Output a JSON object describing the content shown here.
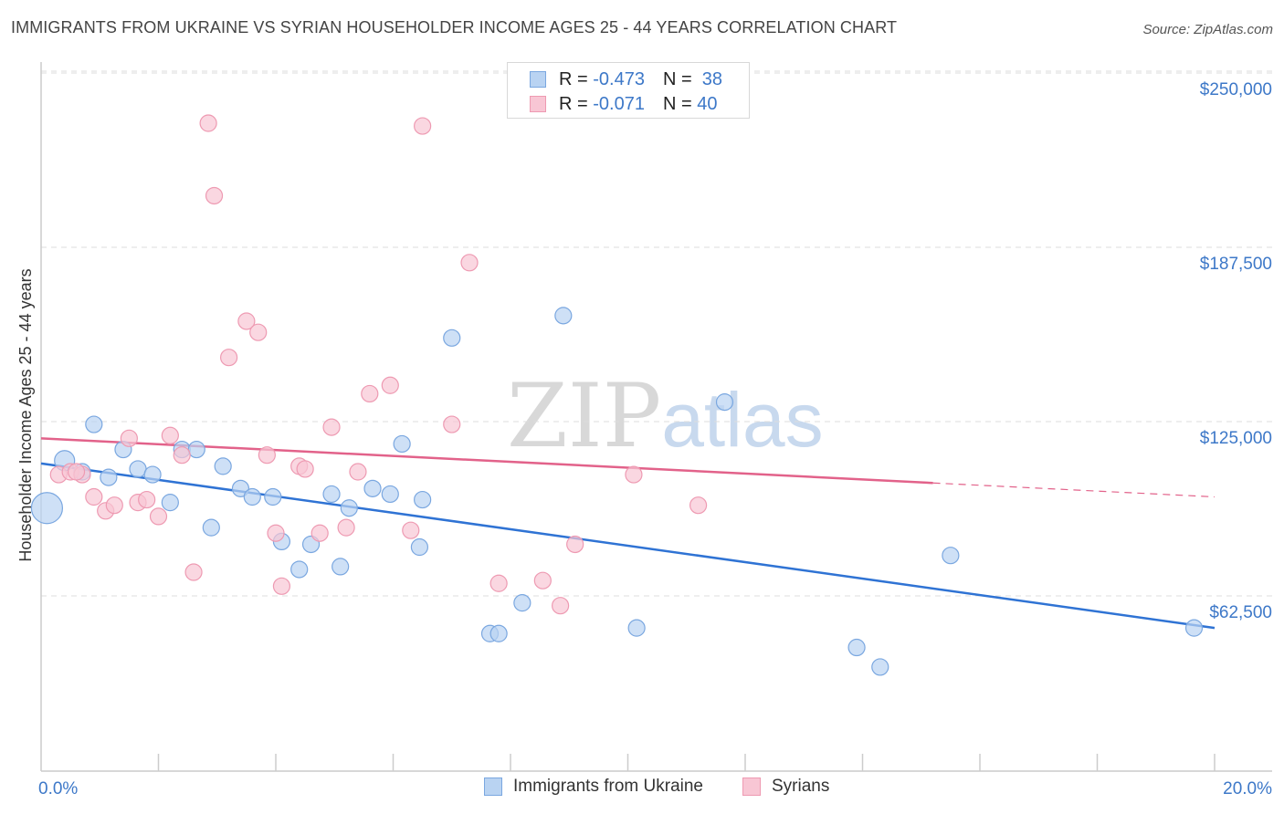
{
  "title": "IMMIGRANTS FROM UKRAINE VS SYRIAN HOUSEHOLDER INCOME AGES 25 - 44 YEARS CORRELATION CHART",
  "source": "Source: ZipAtlas.com",
  "watermark": {
    "zip": "ZIP",
    "atlas": "atlas"
  },
  "legend": {
    "rows": [
      {
        "r_label": "R =",
        "r_value": "-0.473",
        "n_label": "N =",
        "n_value": "38"
      },
      {
        "r_label": "R =",
        "r_value": "-0.071",
        "n_label": "N =",
        "n_value": "40"
      }
    ]
  },
  "colors": {
    "ukraine_fill": "#b9d3f2",
    "ukraine_stroke": "#7aa7e0",
    "ukraine_line": "#2f73d4",
    "syria_fill": "#f8c6d4",
    "syria_stroke": "#ee9ab2",
    "syria_line": "#e2628a",
    "grid": "#dddddd",
    "tick_text": "#3d78c8"
  },
  "chart_data": {
    "type": "scatter",
    "title": "IMMIGRANTS FROM UKRAINE VS SYRIAN HOUSEHOLDER INCOME AGES 25 - 44 YEARS CORRELATION CHART",
    "xlabel": "",
    "ylabel": "Householder Income Ages 25 - 44 years",
    "xlim": [
      0,
      20
    ],
    "ylim": [
      0,
      265000
    ],
    "x_tick_labels": [
      "0.0%",
      "20.0%"
    ],
    "y_ticks": [
      62500,
      125000,
      187500,
      250000
    ],
    "y_tick_labels": [
      "$62,500",
      "$125,000",
      "$187,500",
      "$250,000"
    ],
    "grid": true,
    "legend_position": "bottom",
    "series": [
      {
        "name": "Immigrants from Ukraine",
        "r": -0.473,
        "n": 38,
        "trend": {
          "x0": 0,
          "y0": 110000,
          "x1": 20,
          "y1": 51000
        },
        "points": [
          [
            0.1,
            94000,
            16
          ],
          [
            0.4,
            111000,
            10
          ],
          [
            0.7,
            107000,
            8
          ],
          [
            0.9,
            124000,
            8
          ],
          [
            1.15,
            105000,
            8
          ],
          [
            1.4,
            115000,
            8
          ],
          [
            1.65,
            108000,
            8
          ],
          [
            1.9,
            106000,
            8
          ],
          [
            2.2,
            96000,
            8
          ],
          [
            2.4,
            115000,
            8
          ],
          [
            2.65,
            115000,
            8
          ],
          [
            2.9,
            87000,
            8
          ],
          [
            3.1,
            109000,
            8
          ],
          [
            3.4,
            101000,
            8
          ],
          [
            3.6,
            98000,
            8
          ],
          [
            3.95,
            98000,
            8
          ],
          [
            4.1,
            82000,
            8
          ],
          [
            4.4,
            72000,
            8
          ],
          [
            4.6,
            81000,
            8
          ],
          [
            4.95,
            99000,
            8
          ],
          [
            5.1,
            73000,
            8
          ],
          [
            5.25,
            94000,
            8
          ],
          [
            5.65,
            101000,
            8
          ],
          [
            5.95,
            99000,
            8
          ],
          [
            6.15,
            117000,
            8
          ],
          [
            6.45,
            80000,
            8
          ],
          [
            6.5,
            97000,
            8
          ],
          [
            7.0,
            155000,
            8
          ],
          [
            7.65,
            49000,
            8
          ],
          [
            7.8,
            49000,
            8
          ],
          [
            8.2,
            60000,
            8
          ],
          [
            8.9,
            163000,
            8
          ],
          [
            10.15,
            51000,
            8
          ],
          [
            11.65,
            132000,
            8
          ],
          [
            13.9,
            44000,
            8
          ],
          [
            14.3,
            37000,
            8
          ],
          [
            15.5,
            77000,
            8
          ],
          [
            19.65,
            51000,
            8
          ]
        ]
      },
      {
        "name": "Syrians",
        "r": -0.071,
        "n": 40,
        "trend": {
          "x0": 0,
          "y0": 119000,
          "x1": 15.2,
          "y1": 103000,
          "dash_x1": 20,
          "dash_y1": 98000
        },
        "points": [
          [
            0.3,
            106000,
            8
          ],
          [
            0.5,
            107000,
            8
          ],
          [
            0.7,
            106000,
            8
          ],
          [
            0.9,
            98000,
            8
          ],
          [
            1.1,
            93000,
            8
          ],
          [
            1.25,
            95000,
            8
          ],
          [
            1.5,
            119000,
            8
          ],
          [
            1.65,
            96000,
            8
          ],
          [
            1.8,
            97000,
            8
          ],
          [
            2.0,
            91000,
            8
          ],
          [
            2.2,
            120000,
            8
          ],
          [
            2.4,
            113000,
            8
          ],
          [
            2.6,
            71000,
            8
          ],
          [
            2.85,
            232000,
            8
          ],
          [
            2.95,
            206000,
            8
          ],
          [
            3.2,
            148000,
            8
          ],
          [
            3.5,
            161000,
            8
          ],
          [
            3.7,
            157000,
            8
          ],
          [
            3.85,
            113000,
            8
          ],
          [
            4.0,
            85000,
            8
          ],
          [
            4.1,
            66000,
            8
          ],
          [
            4.4,
            109000,
            8
          ],
          [
            4.5,
            108000,
            8
          ],
          [
            4.75,
            85000,
            8
          ],
          [
            4.95,
            123000,
            8
          ],
          [
            5.2,
            87000,
            8
          ],
          [
            5.4,
            107000,
            8
          ],
          [
            5.6,
            135000,
            8
          ],
          [
            5.95,
            138000,
            8
          ],
          [
            6.3,
            86000,
            8
          ],
          [
            6.5,
            231000,
            8
          ],
          [
            7.0,
            124000,
            8
          ],
          [
            7.3,
            182000,
            8
          ],
          [
            7.8,
            67000,
            8
          ],
          [
            8.55,
            68000,
            8
          ],
          [
            8.85,
            59000,
            8
          ],
          [
            9.1,
            81000,
            8
          ],
          [
            10.1,
            106000,
            8
          ],
          [
            11.2,
            95000,
            8
          ],
          [
            0.6,
            107000,
            8
          ]
        ]
      }
    ]
  }
}
